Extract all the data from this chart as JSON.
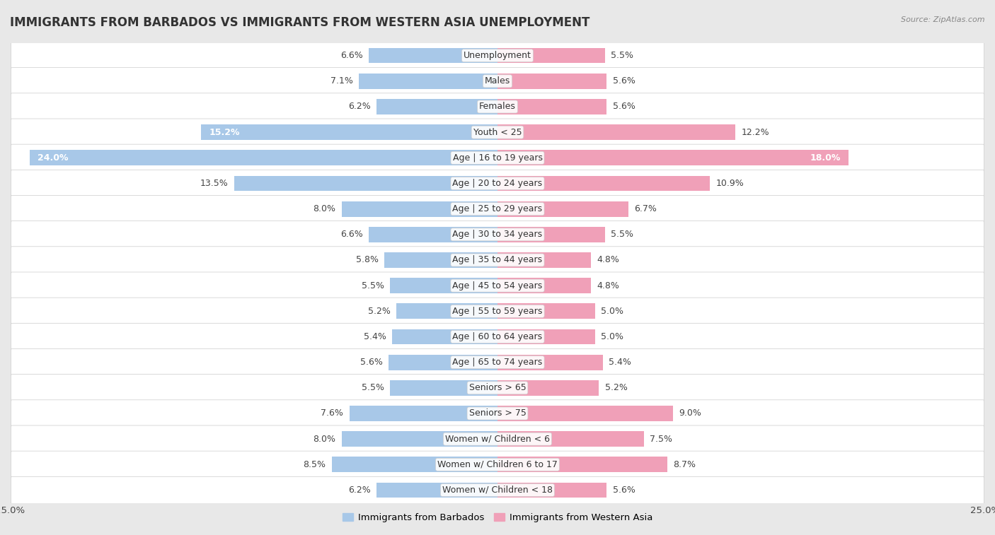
{
  "title": "IMMIGRANTS FROM BARBADOS VS IMMIGRANTS FROM WESTERN ASIA UNEMPLOYMENT",
  "source": "Source: ZipAtlas.com",
  "categories": [
    "Unemployment",
    "Males",
    "Females",
    "Youth < 25",
    "Age | 16 to 19 years",
    "Age | 20 to 24 years",
    "Age | 25 to 29 years",
    "Age | 30 to 34 years",
    "Age | 35 to 44 years",
    "Age | 45 to 54 years",
    "Age | 55 to 59 years",
    "Age | 60 to 64 years",
    "Age | 65 to 74 years",
    "Seniors > 65",
    "Seniors > 75",
    "Women w/ Children < 6",
    "Women w/ Children 6 to 17",
    "Women w/ Children < 18"
  ],
  "barbados_values": [
    6.6,
    7.1,
    6.2,
    15.2,
    24.0,
    13.5,
    8.0,
    6.6,
    5.8,
    5.5,
    5.2,
    5.4,
    5.6,
    5.5,
    7.6,
    8.0,
    8.5,
    6.2
  ],
  "western_asia_values": [
    5.5,
    5.6,
    5.6,
    12.2,
    18.0,
    10.9,
    6.7,
    5.5,
    4.8,
    4.8,
    5.0,
    5.0,
    5.4,
    5.2,
    9.0,
    7.5,
    8.7,
    5.6
  ],
  "barbados_color": "#a8c8e8",
  "western_asia_color": "#f0a0b8",
  "axis_limit": 25.0,
  "page_bg_color": "#e8e8e8",
  "row_bg_color": "#f5f5f5",
  "row_alt_bg_color": "#e0e0e0",
  "bar_height": 0.6,
  "label_fontsize": 9.0,
  "title_fontsize": 12,
  "legend_fontsize": 9.5,
  "inside_label_color": "#ffffff",
  "outside_label_color": "#444444",
  "inside_threshold": 14.0
}
